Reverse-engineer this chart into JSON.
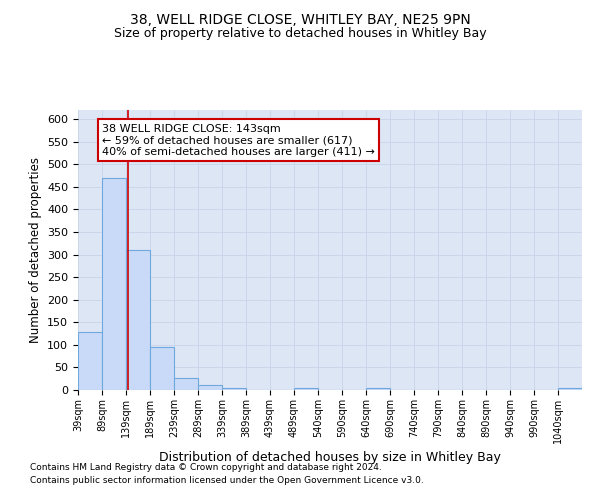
{
  "title1": "38, WELL RIDGE CLOSE, WHITLEY BAY, NE25 9PN",
  "title2": "Size of property relative to detached houses in Whitley Bay",
  "xlabel": "Distribution of detached houses by size in Whitley Bay",
  "ylabel": "Number of detached properties",
  "bin_labels": [
    "39sqm",
    "89sqm",
    "139sqm",
    "189sqm",
    "239sqm",
    "289sqm",
    "339sqm",
    "389sqm",
    "439sqm",
    "489sqm",
    "540sqm",
    "590sqm",
    "640sqm",
    "690sqm",
    "740sqm",
    "790sqm",
    "840sqm",
    "890sqm",
    "940sqm",
    "990sqm",
    "1040sqm"
  ],
  "bar_values": [
    128,
    470,
    310,
    95,
    26,
    10,
    5,
    0,
    0,
    4,
    0,
    0,
    4,
    0,
    0,
    0,
    0,
    0,
    0,
    0,
    4
  ],
  "bar_left_edges": [
    39,
    89,
    139,
    189,
    239,
    289,
    339,
    389,
    439,
    489,
    540,
    590,
    640,
    690,
    740,
    790,
    840,
    890,
    940,
    990,
    1040
  ],
  "bin_width": 50,
  "bar_color": "#c9daf8",
  "bar_edge_color": "#6fa8dc",
  "vline_x": 143,
  "vline_color": "#cc0000",
  "ylim": [
    0,
    620
  ],
  "yticks": [
    0,
    50,
    100,
    150,
    200,
    250,
    300,
    350,
    400,
    450,
    500,
    550,
    600
  ],
  "annotation_box_text": "38 WELL RIDGE CLOSE: 143sqm\n← 59% of detached houses are smaller (617)\n40% of semi-detached houses are larger (411) →",
  "annotation_box_color": "#cc0000",
  "annotation_box_facecolor": "white",
  "grid_color": "#c8d4e8",
  "bg_color": "#dce6f5",
  "plot_bg_color": "#dce6f5",
  "footnote1": "Contains HM Land Registry data © Crown copyright and database right 2024.",
  "footnote2": "Contains public sector information licensed under the Open Government Licence v3.0."
}
